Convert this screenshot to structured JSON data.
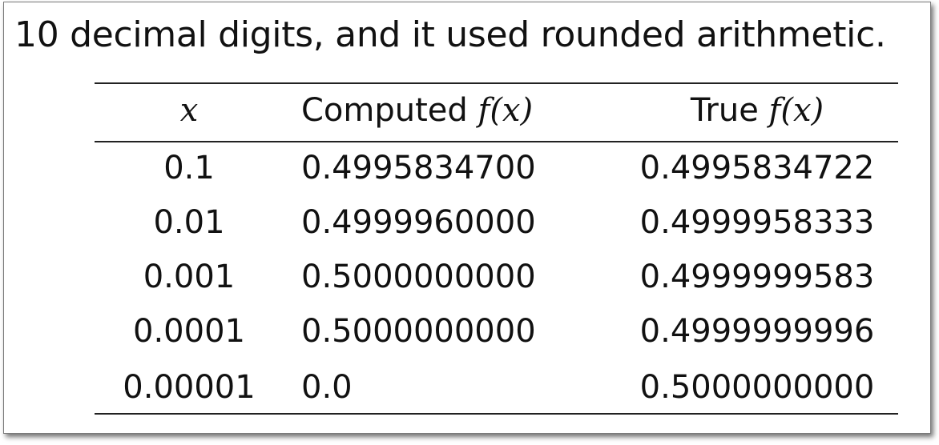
{
  "caption": "10 decimal digits, and it used rounded arithmetic.",
  "table": {
    "headers": {
      "x_var": "x",
      "computed_prefix": "Computed",
      "computed_math": "f(x)",
      "true_prefix": "True",
      "true_math": "f(x)"
    },
    "rows": [
      {
        "x": "0.1",
        "computed": "0.4995834700",
        "true": "0.4995834722"
      },
      {
        "x": "0.01",
        "computed": "0.4999960000",
        "true": "0.4999958333"
      },
      {
        "x": "0.001",
        "computed": "0.5000000000",
        "true": "0.4999999583"
      },
      {
        "x": "0.0001",
        "computed": "0.5000000000",
        "true": "0.4999999996"
      },
      {
        "x": "0.00001",
        "computed": "0.0",
        "true": "0.5000000000"
      }
    ]
  }
}
